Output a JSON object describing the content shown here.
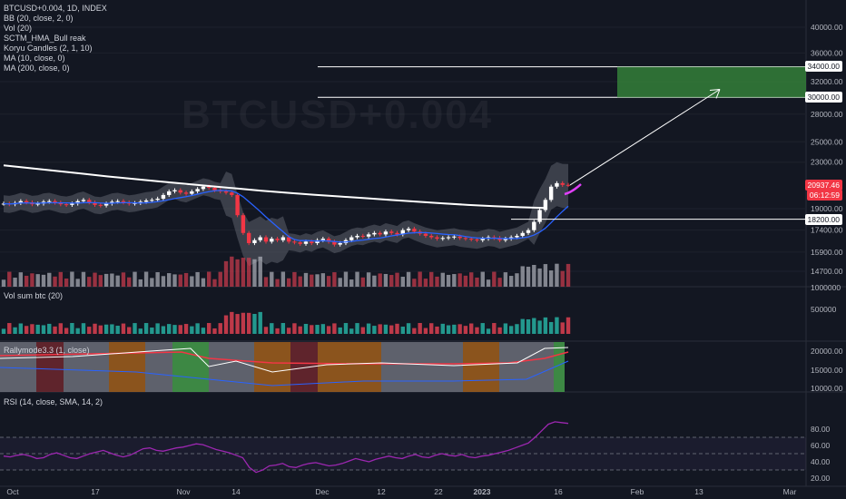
{
  "legend": {
    "symbol": "BTCUSD+0.004, 1D, INDEX",
    "indicators": [
      "BB (20, close, 2, 0)",
      "Vol (20)",
      "SCTM_HMA_Bull reak",
      "Koryu Candles (2, 1, 10)",
      "MA (10, close, 0)",
      "MA (200, close, 0)"
    ]
  },
  "watermark": "BTCUSD+0.004",
  "panes": {
    "vol_label": "Vol sum btc (20)",
    "rally_label": "Rallymode3.3 (1, close)",
    "rsi_label": "RSI (14, close, SMA, 14, 2)"
  },
  "tags": {
    "last_price": "20937.46",
    "countdown": "06:12:59",
    "level_34000": "34000.00",
    "level_30000": "30000.00",
    "level_18200": "18200.00"
  },
  "colors": {
    "background": "#131722",
    "up": "#ffffff",
    "down": "#f23645",
    "bb_fill": "#5d606b",
    "ma200": "#ffffff",
    "ma10": "#f23645",
    "blue": "#2962ff",
    "rsi": "#9c27b0",
    "target_zone": "#388e3c"
  },
  "chart_data": {
    "type": "candlestick",
    "price_axis": {
      "ticks": [
        40000,
        36000,
        34000,
        32000,
        30000,
        28000,
        25000,
        23000,
        20937.46,
        19000,
        18200,
        17400,
        15900,
        14700
      ],
      "tick_labels": [
        "40000.00",
        "36000.00",
        "34000.00",
        "32000.00",
        "30000.00",
        "28000.00",
        "25000.00",
        "23000.00",
        "20937.46",
        "19000.00",
        "18200.00",
        "17400.00",
        "15900.00",
        "14700.00"
      ],
      "scale": "log"
    },
    "x_axis": {
      "labels": [
        "Oct",
        "17",
        "Nov",
        "14",
        "Dec",
        "12",
        "22",
        "2023",
        "16",
        "Feb",
        "13",
        "Mar"
      ]
    },
    "horizontal_levels": [
      34000,
      30000,
      18200
    ],
    "target_zone": {
      "low": 30000,
      "high": 34000
    },
    "projection": {
      "from": 20937.46,
      "to": 31000
    },
    "ohlc_close": [
      19400,
      19350,
      19450,
      19600,
      19500,
      19350,
      19400,
      19550,
      19600,
      19480,
      19350,
      19300,
      19400,
      19600,
      19700,
      19500,
      19300,
      19250,
      19400,
      19550,
      19600,
      19500,
      19400,
      19450,
      19550,
      19650,
      19700,
      19800,
      20100,
      20400,
      20500,
      20300,
      20200,
      20400,
      20600,
      20800,
      20700,
      20500,
      20400,
      20300,
      20100,
      18500,
      17200,
      16500,
      16700,
      16900,
      16600,
      16800,
      16700,
      16900,
      16600,
      16550,
      16450,
      16600,
      16500,
      16700,
      16800,
      16600,
      16400,
      16500,
      16700,
      16900,
      17000,
      16950,
      17100,
      17200,
      17100,
      17300,
      17200,
      17100,
      17400,
      17500,
      17300,
      17150,
      17000,
      16900,
      16800,
      16850,
      16900,
      16950,
      16850,
      16800,
      16750,
      16700,
      16800,
      16900,
      16850,
      16700,
      16800,
      16900,
      17000,
      17200,
      17400,
      18000,
      18900,
      19700,
      20800,
      21100,
      20950,
      20937.46
    ],
    "ma200": [
      22700,
      22450,
      22200,
      21950,
      21700,
      21480,
      21260,
      21050,
      20850,
      20650,
      20450,
      20280,
      20120,
      19980,
      19840,
      19700,
      19560,
      19420,
      19300,
      19200,
      19120,
      19060
    ],
    "ma10_end": [
      17200,
      17600,
      18300,
      19200,
      19900,
      20300
    ],
    "volume_axis": {
      "ticks": [
        1000000,
        500000
      ],
      "tick_labels": [
        "1000000",
        "500000"
      ]
    },
    "rally_axis": {
      "ticks": [
        20000,
        15000,
        10000
      ],
      "tick_labels": [
        "20000.00",
        "15000.00",
        "10000.00"
      ]
    },
    "rsi_axis": {
      "ticks": [
        80,
        60,
        40,
        20
      ],
      "tick_labels": [
        "80.00",
        "60.00",
        "40.00",
        "20.00"
      ]
    },
    "rsi": [
      47,
      46,
      48,
      49,
      47,
      44,
      45,
      49,
      51,
      48,
      45,
      44,
      47,
      50,
      52,
      54,
      51,
      48,
      46,
      48,
      52,
      56,
      57,
      54,
      53,
      55,
      57,
      58,
      60,
      62,
      61,
      58,
      55,
      53,
      51,
      48,
      45,
      33,
      27,
      30,
      35,
      36,
      38,
      34,
      33,
      36,
      38,
      39,
      37,
      35,
      36,
      38,
      41,
      44,
      42,
      40,
      43,
      45,
      47,
      45,
      44,
      47,
      49,
      46,
      45,
      48,
      50,
      48,
      47,
      49,
      46,
      45,
      47,
      48,
      50,
      52,
      54,
      57,
      60,
      63,
      70,
      78,
      86,
      89,
      88,
      87
    ]
  }
}
